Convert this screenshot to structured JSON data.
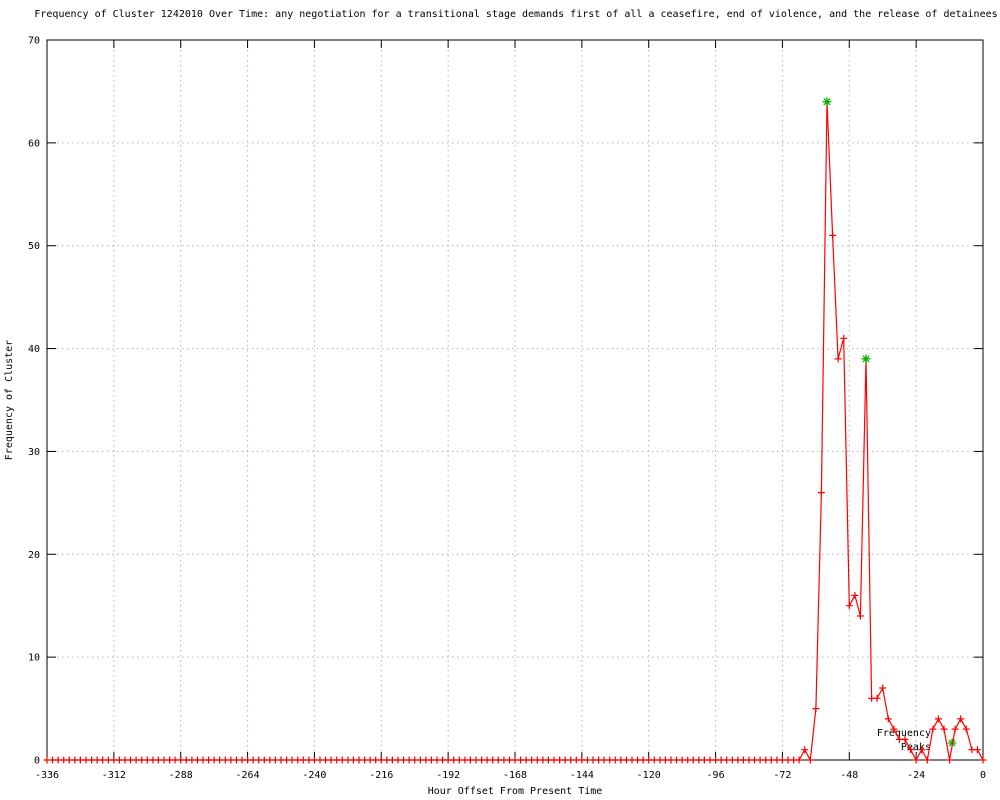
{
  "title": "Frequency of Cluster 1242010 Over Time: any negotiation for a transitional stage demands first of all a ceasefire, end of violence, and the release of detainees",
  "colors": {
    "series_line": "#ff0000",
    "peak_marker": "#00b400",
    "grid": "#b4b4b4",
    "axis": "#000000",
    "background": "#ffffff"
  },
  "chart_data": {
    "type": "line",
    "title": "Frequency of Cluster 1242010 Over Time: any negotiation for a transitional stage demands first of all a ceasefire, end of violence, and the release of detainees",
    "xlabel": "Hour Offset From Present Time",
    "ylabel": "Frequency of Cluster",
    "xlim": [
      -336,
      0
    ],
    "ylim": [
      0,
      70
    ],
    "x_ticks": [
      -336,
      -312,
      -288,
      -264,
      -240,
      -216,
      -192,
      -168,
      -144,
      -120,
      -96,
      -72,
      -48,
      -24,
      0
    ],
    "y_ticks": [
      0,
      10,
      20,
      30,
      40,
      50,
      60,
      70
    ],
    "grid": true,
    "series": [
      {
        "name": "frequency",
        "color": "#ff0000",
        "style": "linespoints",
        "marker": "plus",
        "baseline": {
          "from": -336,
          "to": -66,
          "step": 2,
          "value": 0
        },
        "points": [
          [
            -64,
            1
          ],
          [
            -62,
            0
          ],
          [
            -60,
            5
          ],
          [
            -58,
            26
          ],
          [
            -56,
            64
          ],
          [
            -54,
            51
          ],
          [
            -52,
            39
          ],
          [
            -50,
            41
          ],
          [
            -48,
            15
          ],
          [
            -46,
            16
          ],
          [
            -44,
            14
          ],
          [
            -42,
            39
          ],
          [
            -40,
            6
          ],
          [
            -38,
            6
          ],
          [
            -36,
            7
          ],
          [
            -34,
            4
          ],
          [
            -32,
            3
          ],
          [
            -30,
            2
          ],
          [
            -28,
            2
          ],
          [
            -26,
            1
          ],
          [
            -24,
            0
          ],
          [
            -22,
            1
          ],
          [
            -20,
            0
          ],
          [
            -18,
            3
          ],
          [
            -16,
            4
          ],
          [
            -14,
            3
          ],
          [
            -12,
            0
          ],
          [
            -10,
            3
          ],
          [
            -8,
            4
          ],
          [
            -6,
            3
          ],
          [
            -4,
            1
          ],
          [
            -2,
            1
          ],
          [
            0,
            0
          ]
        ]
      },
      {
        "name": "Frequency Peaks",
        "color": "#00b400",
        "style": "points",
        "marker": "asterisk",
        "points": [
          [
            -56,
            64
          ],
          [
            -42,
            39
          ]
        ]
      }
    ],
    "legend": {
      "position": "bottom-right",
      "line1": "Frequency",
      "line2": "Peaks"
    }
  }
}
